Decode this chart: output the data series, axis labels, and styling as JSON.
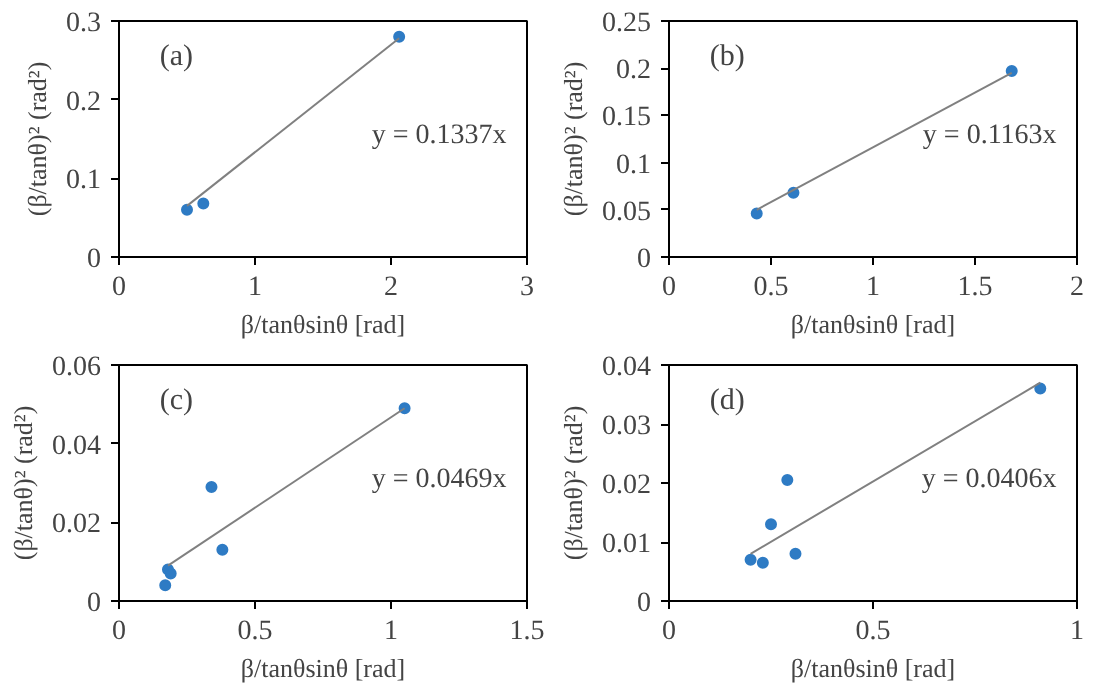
{
  "chart_data": [
    {
      "type": "scatter",
      "xlabel": "β/tanθsinθ [rad]",
      "ylabel": "(β/tanθ)² (rad²)",
      "xlim": [
        0,
        3
      ],
      "ylim": [
        0,
        0.3
      ],
      "xticks": [
        0,
        1,
        2,
        3
      ],
      "yticks": [
        0,
        0.1,
        0.2,
        0.3
      ],
      "grid": false,
      "annotations": [
        "(a)",
        "y = 0.1337x"
      ],
      "series": [
        {
          "marker": "circle",
          "color": "#2e7bc4",
          "x": [
            0.5,
            0.62,
            2.06
          ],
          "values": [
            0.06,
            0.068,
            0.28
          ]
        },
        {
          "type": "line",
          "color": "#808080",
          "x": [
            0.5,
            2.06
          ],
          "values": [
            0.065,
            0.278
          ]
        }
      ]
    },
    {
      "type": "scatter",
      "xlabel": "β/tanθsinθ [rad]",
      "ylabel": "(β/tanθ)² (rad²)",
      "xlim": [
        0,
        2
      ],
      "ylim": [
        0,
        0.25
      ],
      "xticks": [
        0,
        0.5,
        1,
        1.5,
        2
      ],
      "yticks": [
        0,
        0.05,
        0.1,
        0.15,
        0.2,
        0.25
      ],
      "grid": false,
      "annotations": [
        "(b)",
        "y = 0.1163x"
      ],
      "series": [
        {
          "marker": "circle",
          "color": "#2e7bc4",
          "x": [
            0.43,
            0.61,
            1.68
          ],
          "values": [
            0.046,
            0.068,
            0.197
          ]
        },
        {
          "type": "line",
          "color": "#808080",
          "x": [
            0.43,
            1.68
          ],
          "values": [
            0.05,
            0.195
          ]
        }
      ]
    },
    {
      "type": "scatter",
      "xlabel": "β/tanθsinθ [rad]",
      "ylabel": "(β/tanθ)² (rad²)",
      "xlim": [
        0,
        1.5
      ],
      "ylim": [
        0,
        0.06
      ],
      "xticks": [
        0,
        0.5,
        1,
        1.5
      ],
      "yticks": [
        0,
        0.02,
        0.04,
        0.06
      ],
      "grid": false,
      "annotations": [
        "(c)",
        "y = 0.0469x"
      ],
      "series": [
        {
          "marker": "circle",
          "color": "#2e7bc4",
          "x": [
            0.17,
            0.18,
            0.19,
            0.34,
            0.38,
            1.05
          ],
          "values": [
            0.004,
            0.008,
            0.007,
            0.029,
            0.013,
            0.049
          ]
        },
        {
          "type": "line",
          "color": "#808080",
          "x": [
            0.18,
            1.05
          ],
          "values": [
            0.009,
            0.049
          ]
        }
      ]
    },
    {
      "type": "scatter",
      "xlabel": "β/tanθsinθ [rad]",
      "ylabel": "(β/tanθ)² (rad²)",
      "xlim": [
        0,
        1
      ],
      "ylim": [
        0,
        0.04
      ],
      "xticks": [
        0,
        0.5,
        1
      ],
      "yticks": [
        0,
        0.01,
        0.02,
        0.03,
        0.04
      ],
      "grid": false,
      "annotations": [
        "(d)",
        "y = 0.0406x"
      ],
      "series": [
        {
          "marker": "circle",
          "color": "#2e7bc4",
          "x": [
            0.2,
            0.23,
            0.25,
            0.29,
            0.31,
            0.91
          ],
          "values": [
            0.007,
            0.0065,
            0.013,
            0.0205,
            0.008,
            0.036
          ]
        },
        {
          "type": "line",
          "color": "#808080",
          "x": [
            0.2,
            0.91
          ],
          "values": [
            0.008,
            0.037
          ]
        }
      ]
    }
  ]
}
